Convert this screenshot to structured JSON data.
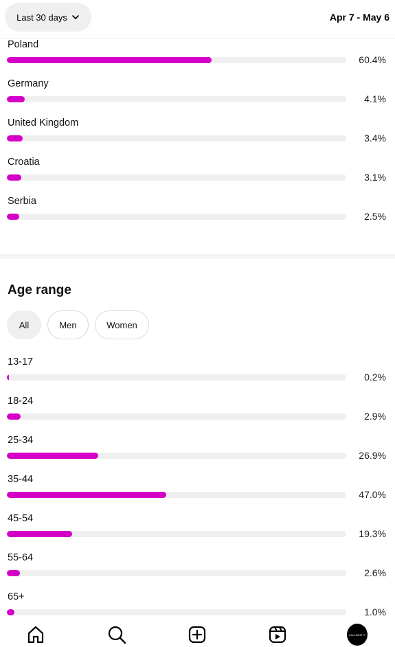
{
  "header": {
    "range_label": "Last 30 days",
    "date_range": "Apr 7 - May 6"
  },
  "countries": [
    {
      "label": "Poland",
      "value": 60.4,
      "display": "60.4%"
    },
    {
      "label": "Germany",
      "value": 4.1,
      "display": "4.1%"
    },
    {
      "label": "United Kingdom",
      "value": 3.4,
      "display": "3.4%"
    },
    {
      "label": "Croatia",
      "value": 3.1,
      "display": "3.1%"
    },
    {
      "label": "Serbia",
      "value": 2.5,
      "display": "2.5%"
    }
  ],
  "age": {
    "title": "Age range",
    "filters": [
      "All",
      "Men",
      "Women"
    ],
    "selected_filter": "All",
    "items": [
      {
        "label": "13-17",
        "value": 0.2,
        "display": "0.2%"
      },
      {
        "label": "18-24",
        "value": 2.9,
        "display": "2.9%"
      },
      {
        "label": "25-34",
        "value": 26.9,
        "display": "26.9%"
      },
      {
        "label": "35-44",
        "value": 47.0,
        "display": "47.0%"
      },
      {
        "label": "45-54",
        "value": 19.3,
        "display": "19.3%"
      },
      {
        "label": "55-64",
        "value": 2.6,
        "display": "2.6%"
      },
      {
        "label": "65+",
        "value": 1.0,
        "display": "1.0%"
      }
    ]
  },
  "colors": {
    "bar": "#d400c8",
    "track": "#efefef"
  },
  "nav": {
    "items": [
      "home-icon",
      "search-icon",
      "create-icon",
      "reels-icon",
      "profile-avatar"
    ],
    "avatar_text": "CALLBERTY"
  }
}
